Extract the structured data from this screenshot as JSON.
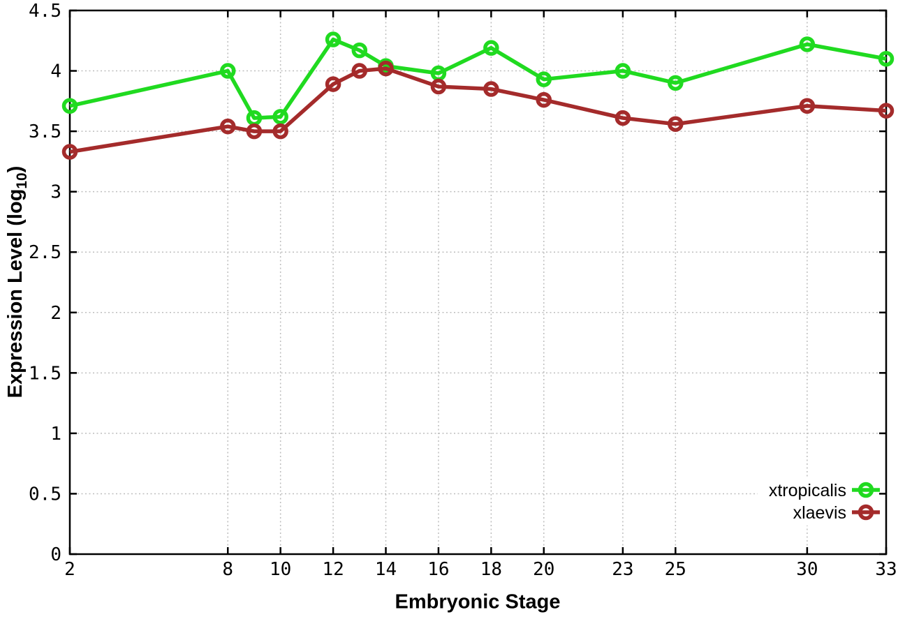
{
  "chart_data": {
    "type": "line",
    "title": "",
    "xlabel": "Embryonic Stage",
    "ylabel_main": "Expression Level (log",
    "ylabel_sub": "10",
    "ylabel_close": ")",
    "x": [
      2,
      8,
      9,
      10,
      12,
      13,
      14,
      16,
      18,
      20,
      23,
      25,
      30,
      33
    ],
    "series": [
      {
        "name": "xtropicalis",
        "color": "#20da20",
        "values": [
          3.71,
          4.0,
          3.61,
          3.62,
          4.26,
          4.17,
          4.04,
          3.98,
          4.19,
          3.93,
          4.0,
          3.9,
          4.22,
          4.1
        ]
      },
      {
        "name": "xlaevis",
        "color": "#a42b2b",
        "values": [
          3.33,
          3.54,
          3.5,
          3.5,
          3.89,
          4.0,
          4.02,
          3.87,
          3.85,
          3.76,
          3.61,
          3.56,
          3.71,
          3.67
        ]
      }
    ],
    "xlim": [
      2,
      33
    ],
    "ylim": [
      0,
      4.5
    ],
    "xticks": {
      "values": [
        2,
        8,
        10,
        12,
        14,
        16,
        18,
        20,
        23,
        25,
        30,
        33
      ],
      "labels": [
        "2",
        "8",
        "10",
        "12",
        "14",
        "16",
        "18",
        "20",
        "23",
        "25",
        "30",
        "33"
      ]
    },
    "yticks": {
      "values": [
        0,
        0.5,
        1,
        1.5,
        2,
        2.5,
        3,
        3.5,
        4,
        4.5
      ],
      "labels": [
        "0",
        "0.5",
        "1",
        "1.5",
        "2",
        "2.5",
        "3",
        "3.5",
        "4",
        "4.5"
      ]
    },
    "grid": true,
    "legend_position": "bottom-right",
    "marker": "open-circle",
    "colors": {
      "grid": "#bdbdbd",
      "border": "#000000",
      "text": "#000000",
      "background": "#ffffff"
    }
  }
}
